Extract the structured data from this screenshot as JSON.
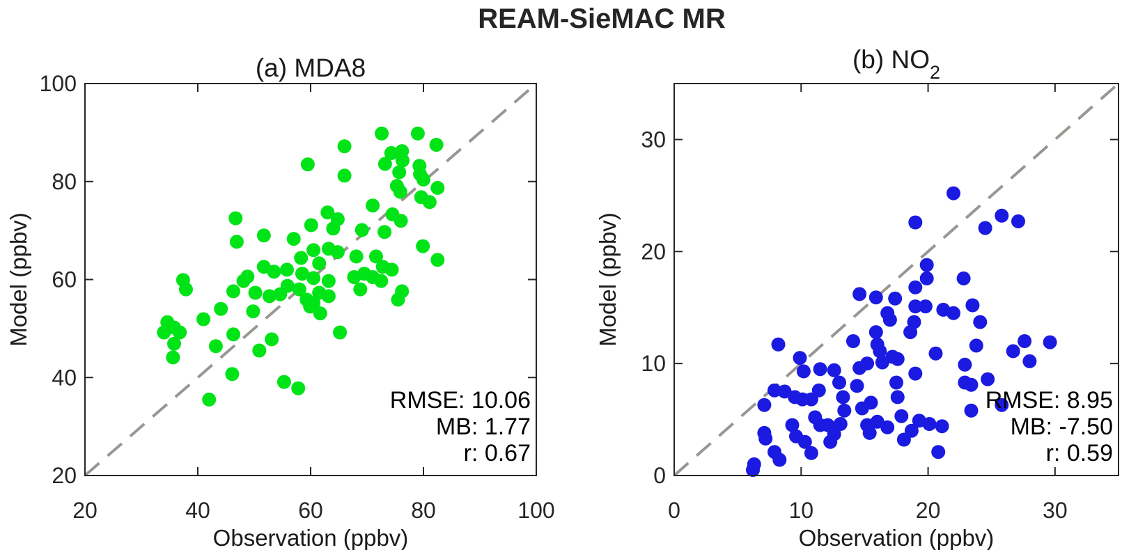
{
  "figure": {
    "title": "REAM-SieMAC MR",
    "background": "#ffffff",
    "spine_color": "#262626",
    "text_color": "#262626"
  },
  "chart_data": [
    {
      "type": "scatter",
      "panel": "a",
      "title": "(a) MDA8",
      "title_sub": "",
      "xlabel": "Observation (ppbv)",
      "ylabel": "Model (ppbv)",
      "xlim": [
        20,
        100
      ],
      "ylim": [
        20,
        100
      ],
      "xticks": [
        20,
        40,
        60,
        80,
        100
      ],
      "yticks": [
        20,
        40,
        60,
        80,
        100
      ],
      "grid": false,
      "marker_color": "#00E317",
      "identity_line": {
        "style": "dashed",
        "color": "#9A9692",
        "from": [
          20,
          20
        ],
        "to": [
          100,
          100
        ]
      },
      "stats_lines": [
        "RMSE: 10.06",
        "MB: 1.77",
        "r: 0.67"
      ],
      "stats_position": "bottom-right",
      "points": [
        [
          59.5,
          83.5
        ],
        [
          46.7,
          72.5
        ],
        [
          46.9,
          67.7
        ],
        [
          51.7,
          69
        ],
        [
          57,
          68.3
        ],
        [
          60.1,
          71.1
        ],
        [
          60.5,
          66
        ],
        [
          58.3,
          64.4
        ],
        [
          51.7,
          62.6
        ],
        [
          53.5,
          61.6
        ],
        [
          55.8,
          62
        ],
        [
          58.5,
          61.2
        ],
        [
          48.8,
          60.6
        ],
        [
          60.5,
          60.3
        ],
        [
          72.6,
          89.8
        ],
        [
          79,
          89.8
        ],
        [
          66,
          87.2
        ],
        [
          82.3,
          87.5
        ],
        [
          74.3,
          85.8
        ],
        [
          76.2,
          86.2
        ],
        [
          76.3,
          84.3
        ],
        [
          73.2,
          83.6
        ],
        [
          66,
          81.2
        ],
        [
          75.7,
          81.9
        ],
        [
          79.3,
          83.2
        ],
        [
          79.4,
          81.5
        ],
        [
          80,
          80.4
        ],
        [
          75.3,
          79.1
        ],
        [
          75.9,
          77.9
        ],
        [
          82.5,
          78.7
        ],
        [
          79.6,
          76.8
        ],
        [
          81.1,
          75.8
        ],
        [
          71,
          75.1
        ],
        [
          63,
          73.7
        ],
        [
          64.8,
          72.3
        ],
        [
          64,
          70.4
        ],
        [
          74.5,
          73.3
        ],
        [
          76,
          72
        ],
        [
          69.1,
          70.1
        ],
        [
          73.1,
          69.7
        ],
        [
          79.9,
          66.8
        ],
        [
          63.2,
          66.3
        ],
        [
          64.8,
          65.6
        ],
        [
          68.1,
          64.7
        ],
        [
          71.6,
          64.7
        ],
        [
          72.8,
          62.6
        ],
        [
          74.4,
          62
        ],
        [
          82.5,
          64
        ],
        [
          61.5,
          63.3
        ],
        [
          69.5,
          61.2
        ],
        [
          71,
          60.5
        ],
        [
          67.7,
          60.5
        ],
        [
          37.4,
          59.9
        ],
        [
          37.9,
          58
        ],
        [
          46.3,
          57.6
        ],
        [
          48.1,
          59.7
        ],
        [
          50.2,
          57.3
        ],
        [
          52.7,
          56.6
        ],
        [
          54.6,
          57
        ],
        [
          55.9,
          58.7
        ],
        [
          58,
          58
        ],
        [
          59.3,
          55.9
        ],
        [
          59.9,
          54.5
        ],
        [
          44.1,
          54
        ],
        [
          49.8,
          53.5
        ],
        [
          41,
          51.9
        ],
        [
          34.6,
          51.3
        ],
        [
          35.8,
          50.2
        ],
        [
          34,
          49.2
        ],
        [
          36.8,
          49.2
        ],
        [
          35.8,
          46.9
        ],
        [
          35.6,
          44.1
        ],
        [
          43.2,
          46.4
        ],
        [
          46.3,
          48.8
        ],
        [
          50.9,
          45.5
        ],
        [
          53.1,
          47.8
        ],
        [
          46.1,
          40.7
        ],
        [
          55.3,
          39.1
        ],
        [
          57.8,
          37.8
        ],
        [
          42,
          35.5
        ],
        [
          63.2,
          59.7
        ],
        [
          61.5,
          57.3
        ],
        [
          63.2,
          56.6
        ],
        [
          60.5,
          55.2
        ],
        [
          61.7,
          53.1
        ],
        [
          68.8,
          58
        ],
        [
          72.5,
          59.7
        ],
        [
          76.2,
          57.6
        ],
        [
          75.5,
          55.9
        ],
        [
          65.2,
          49.2
        ]
      ]
    },
    {
      "type": "scatter",
      "panel": "b",
      "title": "(b) NO",
      "title_sub": "2",
      "xlabel": "Observation (ppbv)",
      "ylabel": "Model (ppbv)",
      "xlim": [
        0,
        35
      ],
      "ylim": [
        0,
        35
      ],
      "xticks": [
        0,
        10,
        20,
        30
      ],
      "yticks": [
        0,
        10,
        20,
        30
      ],
      "grid": false,
      "marker_color": "#1A1AE0",
      "identity_line": {
        "style": "dashed",
        "color": "#9A9692",
        "from": [
          0,
          0
        ],
        "to": [
          35,
          35
        ]
      },
      "stats_lines": [
        "RMSE: 8.95",
        "MB: -7.50",
        "r: 0.59"
      ],
      "stats_position": "bottom-right",
      "points": [
        [
          22,
          25.2
        ],
        [
          19,
          22.6
        ],
        [
          24.5,
          22.1
        ],
        [
          25.8,
          23.2
        ],
        [
          27.1,
          22.7
        ],
        [
          19.9,
          18.8
        ],
        [
          19.9,
          17.6
        ],
        [
          22.8,
          17.6
        ],
        [
          14.6,
          16.2
        ],
        [
          15.9,
          15.9
        ],
        [
          17.4,
          15.8
        ],
        [
          16.8,
          14.5
        ],
        [
          17,
          13.9
        ],
        [
          8.2,
          11.7
        ],
        [
          14.1,
          12
        ],
        [
          15.9,
          12.8
        ],
        [
          16,
          11.7
        ],
        [
          16.2,
          11.1
        ],
        [
          9.9,
          10.5
        ],
        [
          10.2,
          9.3
        ],
        [
          11.5,
          9.5
        ],
        [
          12.6,
          9.4
        ],
        [
          14.6,
          9.6
        ],
        [
          15.2,
          10
        ],
        [
          16.4,
          10.1
        ],
        [
          17.2,
          10.6
        ],
        [
          7.9,
          7.6
        ],
        [
          8.7,
          7.5
        ],
        [
          9.5,
          7
        ],
        [
          10.1,
          6.8
        ],
        [
          10.8,
          6.8
        ],
        [
          11.4,
          7.6
        ],
        [
          7.1,
          6.3
        ],
        [
          13,
          8.3
        ],
        [
          13.3,
          7
        ],
        [
          13.4,
          5.8
        ],
        [
          14.4,
          8
        ],
        [
          14.8,
          6
        ],
        [
          15.5,
          6.5
        ],
        [
          11.1,
          5.2
        ],
        [
          11.5,
          4.5
        ],
        [
          12.1,
          4.5
        ],
        [
          9.3,
          4.5
        ],
        [
          9.6,
          3.5
        ],
        [
          10.3,
          3
        ],
        [
          10.8,
          2
        ],
        [
          7.1,
          3.8
        ],
        [
          7.2,
          3.3
        ],
        [
          7.9,
          2.1
        ],
        [
          8.3,
          1.4
        ],
        [
          6.3,
          1
        ],
        [
          12.3,
          3
        ],
        [
          12.6,
          3.7
        ],
        [
          13.1,
          4.6
        ],
        [
          15.2,
          4.5
        ],
        [
          15.4,
          3.8
        ],
        [
          16,
          4.8
        ],
        [
          16.8,
          4.3
        ],
        [
          19,
          16.8
        ],
        [
          19,
          15.1
        ],
        [
          19.8,
          15.1
        ],
        [
          21.2,
          14.8
        ],
        [
          22,
          14.5
        ],
        [
          23.5,
          15.2
        ],
        [
          24.1,
          13.7
        ],
        [
          18.9,
          13.7
        ],
        [
          18.6,
          12.8
        ],
        [
          20.6,
          10.9
        ],
        [
          23.8,
          11.6
        ],
        [
          26.7,
          11.1
        ],
        [
          27.6,
          12
        ],
        [
          28,
          10.2
        ],
        [
          29.6,
          11.9
        ],
        [
          17.6,
          10.4
        ],
        [
          22.9,
          9.9
        ],
        [
          19,
          9.1
        ],
        [
          17.5,
          8.3
        ],
        [
          22.9,
          8.3
        ],
        [
          23.4,
          8.1
        ],
        [
          24.7,
          8.6
        ],
        [
          17.6,
          7
        ],
        [
          23.4,
          5.8
        ],
        [
          25.8,
          6.3
        ],
        [
          17.9,
          5.3
        ],
        [
          19.3,
          4.9
        ],
        [
          20.1,
          4.6
        ],
        [
          21.1,
          4.4
        ],
        [
          18.7,
          4
        ],
        [
          18.1,
          3.2
        ],
        [
          20.8,
          2.1
        ],
        [
          6.2,
          0.5
        ]
      ]
    }
  ]
}
